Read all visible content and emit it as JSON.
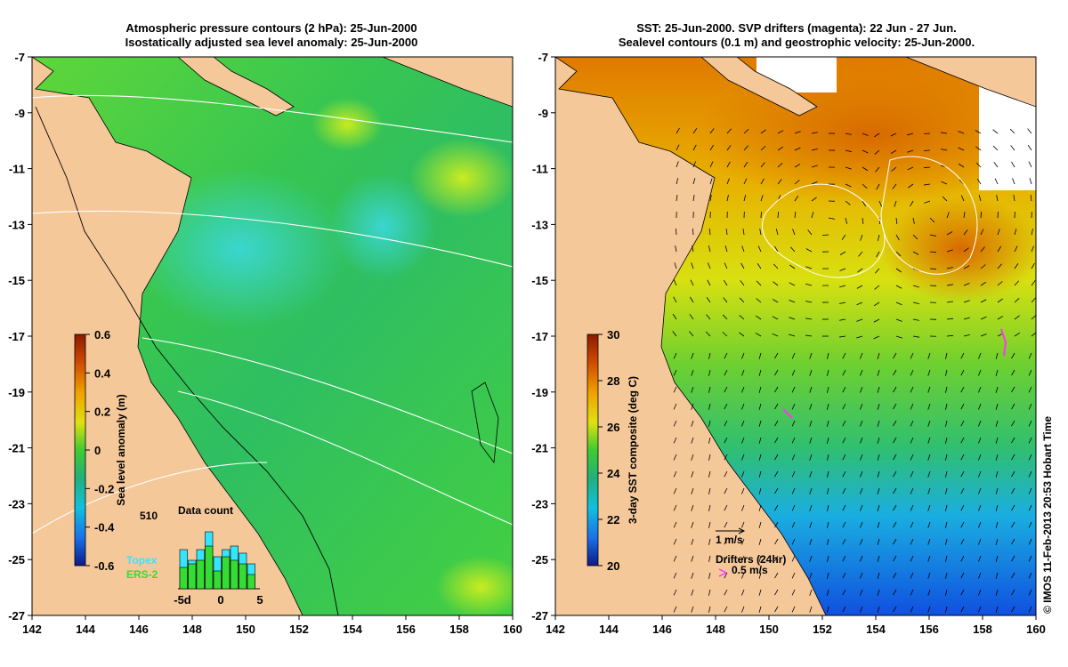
{
  "left_panel": {
    "title_line1": "Atmospheric pressure contours (2 hPa): 25-Jun-2000",
    "title_line2": "Isostatically adjusted sea level anomaly: 25-Jun-2000",
    "colorbar": {
      "label": "Sea level anomaly (m)",
      "ticks": [
        "0.6",
        "0.4",
        "0.2",
        "0",
        "-0.2",
        "-0.4",
        "-0.6"
      ],
      "colors": [
        "#8b1a00",
        "#d95a00",
        "#f0b000",
        "#cde80a",
        "#33cc33",
        "#22aa88",
        "#11b6d8",
        "#1466e0",
        "#101a90"
      ]
    },
    "histogram": {
      "title": "Data count",
      "max_label": "510",
      "legend_topex": "Topex",
      "legend_ers2": "ERS-2",
      "xticks": [
        "-5d",
        "0",
        "5"
      ],
      "topex_color": "#33e6ff",
      "ers2_color": "#33dd33",
      "topex": [
        0.55,
        0.4,
        0.55,
        0.8,
        0.45,
        0.55,
        0.6,
        0.5,
        0.35
      ],
      "ers2": [
        0.3,
        0.35,
        0.4,
        0.6,
        0.25,
        0.45,
        0.4,
        0.35,
        0.2
      ]
    }
  },
  "right_panel": {
    "title_line1": "SST: 25-Jun-2000. SVP drifters (magenta): 22 Jun - 27 Jun.",
    "title_line2": "Sealevel contours (0.1 m) and geostrophic velocity: 25-Jun-2000.",
    "colorbar": {
      "label": "3-day SST composite (deg C)",
      "ticks": [
        "30",
        "28",
        "26",
        "24",
        "22",
        "20"
      ],
      "colors": [
        "#8b1a00",
        "#d95a00",
        "#f0b000",
        "#cde80a",
        "#33cc33",
        "#22aa88",
        "#11b6d8",
        "#1466e0",
        "#101a90"
      ]
    },
    "velocity_scale_label": "1 m/s",
    "drifters_label": "Drifters (24hr)",
    "drifter_speed_label": "0.5 m/s",
    "drifter_color": "#ff33ff"
  },
  "axes": {
    "lon_ticks": [
      "142",
      "144",
      "146",
      "148",
      "150",
      "152",
      "154",
      "156",
      "158",
      "160"
    ],
    "lat_ticks": [
      "-7",
      "-9",
      "-11",
      "-13",
      "-15",
      "-17",
      "-19",
      "-21",
      "-23",
      "-25",
      "-27"
    ]
  },
  "colors": {
    "land": "#f5c89a",
    "ocean_sla": "#3ccc44",
    "ocean_sst_warm": "#e8a000",
    "ocean_sst_cool": "#1a6ee8"
  },
  "copyright": "© IMOS 11-Feb-2013 20:53 Hobart Time"
}
